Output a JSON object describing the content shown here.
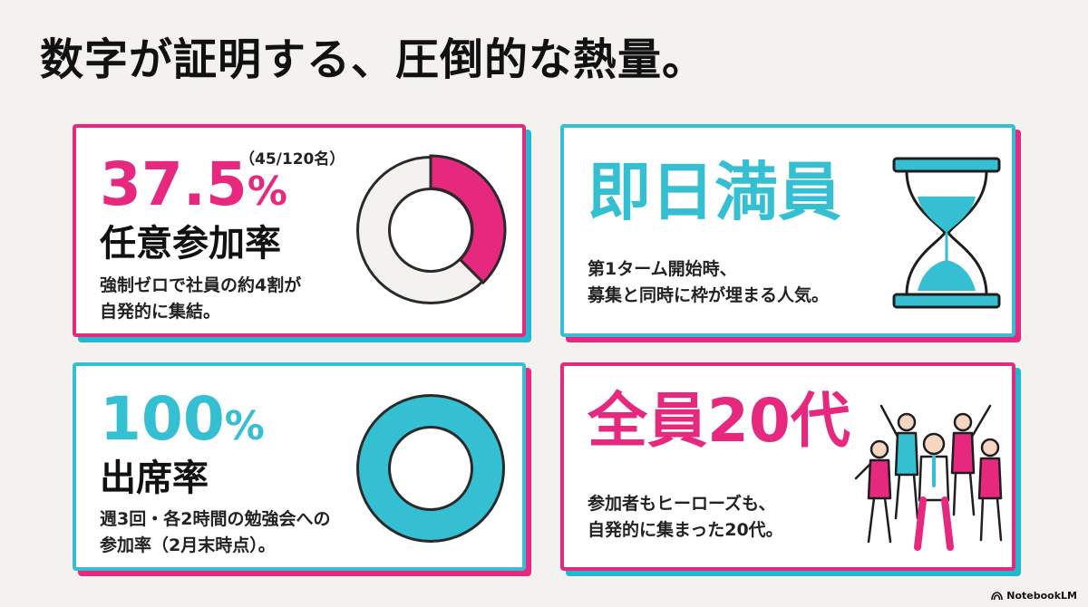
{
  "page": {
    "title": "数字が証明する、圧倒的な熱量。"
  },
  "cards": {
    "participation": {
      "value_number": "37.5",
      "value_unit": "%",
      "note": "（45/120名）",
      "label": "任意参加率",
      "description": "強制ゼロで社員の約4割が\n自発的に集結。",
      "ratio": 0.375,
      "accent": "#e6287e"
    },
    "sold_out": {
      "headline": "即日満員",
      "description": "第1ターム開始時、\n募集と同時に枠が埋まる人気。",
      "accent": "#35bfd3",
      "icon": "hourglass-icon"
    },
    "attendance": {
      "value_number": "100",
      "value_unit": "%",
      "label": "出席率",
      "description": "週3回・各2時間の勉強会への\n参加率（2月末時点）。",
      "ratio": 1.0,
      "accent": "#35bfd3"
    },
    "age": {
      "headline": "全員20代",
      "description": "参加者もヒーローズも、\n自発的に集まった20代。",
      "accent": "#e6287e",
      "icon": "cheering-people-icon"
    }
  },
  "footer": {
    "brand": "NotebookLM",
    "icon": "notebooklm-logo-icon"
  }
}
